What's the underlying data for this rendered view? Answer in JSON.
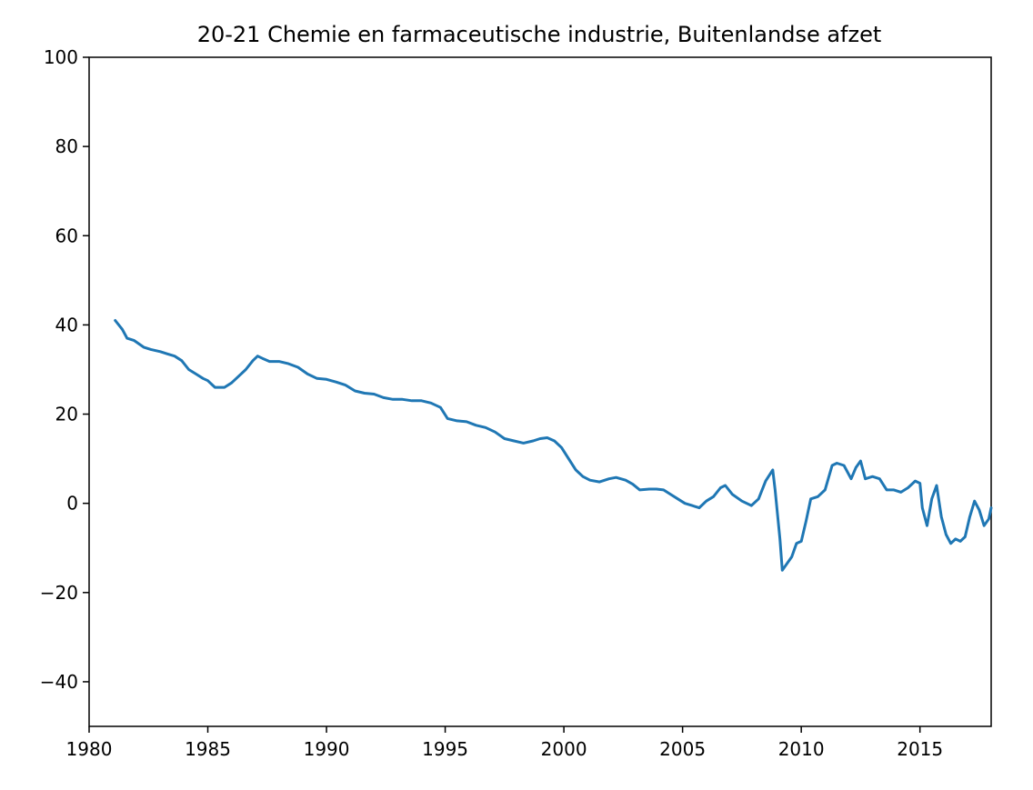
{
  "chart_data": {
    "type": "line",
    "title": "20-21 Chemie en farmaceutische industrie, Buitenlandse afzet",
    "xlabel": "",
    "ylabel": "",
    "xlim": [
      1980,
      2018
    ],
    "ylim": [
      -50,
      100
    ],
    "xticks": [
      1980,
      1985,
      1990,
      1995,
      2000,
      2005,
      2010,
      2015
    ],
    "yticks": [
      -40,
      -20,
      0,
      20,
      40,
      60,
      80,
      100
    ],
    "ytick_labels": [
      "−40",
      "−20",
      "0",
      "20",
      "40",
      "60",
      "80",
      "100"
    ],
    "grid": false,
    "line_color": "#1f77b4",
    "series": [
      {
        "x": [
          1981.1,
          1981.4,
          1981.6,
          1981.9,
          1982.3,
          1982.6,
          1983.0,
          1983.3,
          1983.6,
          1983.9,
          1984.2,
          1984.5,
          1984.8,
          1985.0,
          1985.3,
          1985.7,
          1986.0,
          1986.3,
          1986.6,
          1986.9,
          1987.1,
          1987.3,
          1987.6,
          1988.0,
          1988.4,
          1988.8,
          1989.2,
          1989.6,
          1990.0,
          1990.4,
          1990.8,
          1991.2,
          1991.6,
          1992.0,
          1992.4,
          1992.8,
          1993.2,
          1993.6,
          1994.0,
          1994.4,
          1994.8,
          1995.1,
          1995.5,
          1995.9,
          1996.3,
          1996.7,
          1997.1,
          1997.5,
          1997.9,
          1998.3,
          1998.7,
          1999.0,
          1999.3,
          1999.6,
          1999.9,
          2000.2,
          2000.5,
          2000.8,
          2001.1,
          2001.5,
          2001.9,
          2002.2,
          2002.6,
          2002.9,
          2003.2,
          2003.6,
          2003.9,
          2004.2,
          2004.5,
          2004.8,
          2005.1,
          2005.4,
          2005.7,
          2006.0,
          2006.3,
          2006.6,
          2006.8,
          2007.1,
          2007.5,
          2007.9,
          2008.2,
          2008.5,
          2008.8,
          2008.9,
          2009.1,
          2009.2,
          2009.4,
          2009.6,
          2009.8,
          2010.0,
          2010.2,
          2010.4,
          2010.7,
          2011.0,
          2011.3,
          2011.5,
          2011.8,
          2012.1,
          2012.3,
          2012.5,
          2012.7,
          2013.0,
          2013.3,
          2013.6,
          2013.9,
          2014.2,
          2014.5,
          2014.8,
          2015.0,
          2015.1,
          2015.3,
          2015.5,
          2015.7,
          2015.9,
          2016.1,
          2016.3,
          2016.5,
          2016.7,
          2016.9,
          2017.1,
          2017.3,
          2017.5,
          2017.7,
          2017.9,
          2018.0
        ],
        "y": [
          41,
          39,
          37,
          36.5,
          35,
          34.5,
          34,
          33.5,
          33,
          32,
          30,
          29,
          28,
          27.5,
          26,
          26,
          27,
          28.5,
          30,
          32,
          33,
          32.5,
          31.8,
          31.8,
          31.3,
          30.5,
          29,
          28,
          27.8,
          27.2,
          26.5,
          25.2,
          24.7,
          24.5,
          23.7,
          23.3,
          23.3,
          23,
          23,
          22.5,
          21.5,
          19,
          18.5,
          18.3,
          17.5,
          17,
          16,
          14.5,
          14,
          13.5,
          14,
          14.5,
          14.7,
          14,
          12.5,
          10,
          7.5,
          6,
          5.2,
          4.8,
          5.5,
          5.8,
          5.2,
          4.3,
          3,
          3.2,
          3.2,
          3,
          2,
          1,
          0,
          -0.5,
          -1,
          0.5,
          1.5,
          3.5,
          4,
          2,
          0.5,
          -0.5,
          1,
          5,
          7.5,
          3,
          -8,
          -15,
          -13.5,
          -12,
          -9,
          -8.5,
          -4,
          1,
          1.5,
          3,
          8.5,
          9,
          8.5,
          5.5,
          8,
          9.5,
          5.5,
          6,
          5.5,
          3,
          3,
          2.5,
          3.5,
          5,
          4.5,
          -1,
          -5,
          1,
          4,
          -3,
          -7,
          -9,
          -8,
          -8.5,
          -7.5,
          -3,
          0.5,
          -1.5,
          -5,
          -3.5,
          -1
        ]
      }
    ]
  }
}
